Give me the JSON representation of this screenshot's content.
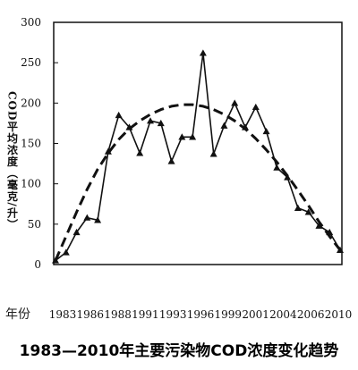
{
  "chart_data": {
    "type": "line",
    "title": "1983—2010年主要污染物COD浓度变化趋势",
    "ylabel": "COD平均浓度（毫克/升）",
    "xlabel": "年份",
    "ylim": [
      0,
      300
    ],
    "yticks": [
      0,
      50,
      100,
      150,
      200,
      250,
      300
    ],
    "xticks": [
      "1983",
      "1986",
      "1988",
      "1991",
      "1993",
      "1996",
      "1999",
      "2001",
      "2004",
      "2006",
      "2010"
    ],
    "grid": false,
    "legend": "none",
    "series": [
      {
        "style": "solid-triangle-markers",
        "values": [
          5,
          15,
          40,
          58,
          55,
          140,
          185,
          170,
          138,
          178,
          175,
          128,
          158,
          158,
          262,
          137,
          172,
          200,
          170,
          195,
          165,
          120,
          108,
          70,
          65,
          48,
          40,
          18
        ]
      },
      {
        "style": "dashed-trend",
        "values": [
          5,
          35,
          65,
          93,
          118,
          138,
          155,
          168,
          178,
          186,
          192,
          196,
          198,
          198,
          196,
          192,
          186,
          178,
          168,
          156,
          142,
          127,
          110,
          92,
          73,
          53,
          35,
          18
        ]
      }
    ]
  }
}
